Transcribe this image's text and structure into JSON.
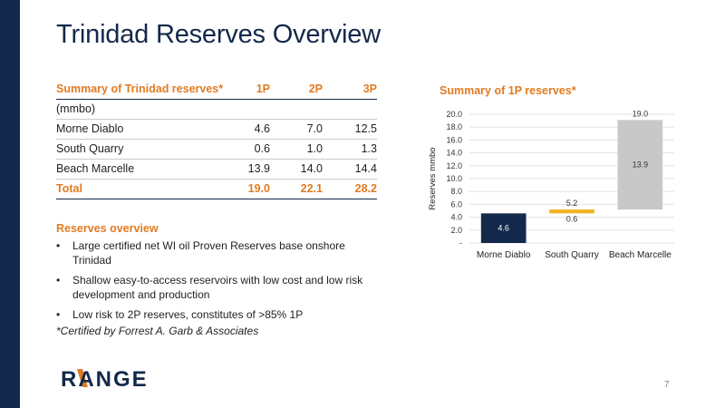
{
  "title": "Trinidad Reserves Overview",
  "table": {
    "headers": [
      "Summary of Trinidad reserves*",
      "1P",
      "2P",
      "3P"
    ],
    "unit_row": "(mmbo)",
    "rows": [
      {
        "name": "Morne Diablo",
        "p1": "4.6",
        "p2": "7.0",
        "p3": "12.5"
      },
      {
        "name": "South Quarry",
        "p1": "0.6",
        "p2": "1.0",
        "p3": "1.3"
      },
      {
        "name": "Beach Marcelle",
        "p1": "13.9",
        "p2": "14.0",
        "p3": "14.4"
      }
    ],
    "total": {
      "name": "Total",
      "p1": "19.0",
      "p2": "22.1",
      "p3": "28.2"
    }
  },
  "overview": {
    "heading": "Reserves overview",
    "bullets": [
      "Large certified net WI oil Proven Reserves base onshore Trinidad",
      "Shallow easy-to-access reservoirs with low cost and low risk development and production",
      "Low risk to 2P reserves, constitutes of >85% 1P"
    ]
  },
  "footnote": "*Certified by Forrest A. Garb & Associates",
  "logo_text": "RANGE",
  "page_number": "7",
  "chart_data": {
    "type": "bar",
    "subtype": "waterfall",
    "title": "Summary of 1P reserves*",
    "ylabel": "Reserves mmbo",
    "ylim": [
      0,
      20
    ],
    "y_ticks": [
      "-",
      "2.0",
      "4.0",
      "6.0",
      "8.0",
      "10.0",
      "12.0",
      "14.0",
      "16.0",
      "18.0",
      "20.0"
    ],
    "categories": [
      "Morne Diablo",
      "South Quarry",
      "Beach Marcelle"
    ],
    "values": [
      4.6,
      0.6,
      13.9
    ],
    "value_labels": [
      "4.6",
      "0.6",
      "13.9"
    ],
    "cumulative_labels": [
      "",
      "5.2",
      "19.0"
    ],
    "colors": [
      "#13294b",
      "#f0b323",
      "#c8c8c8"
    ],
    "grid": true
  },
  "colors": {
    "navy": "#13294b",
    "orange": "#e07b22",
    "rule": "#c9c9c9"
  }
}
